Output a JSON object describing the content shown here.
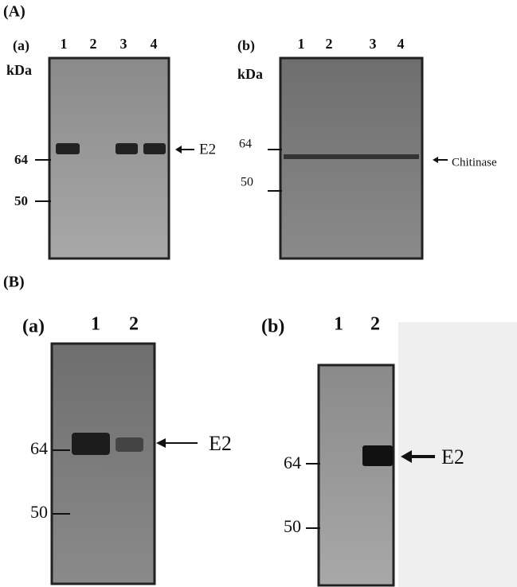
{
  "panels": [
    {
      "label": "(A)",
      "subpanels": [
        {
          "label": "(a)",
          "lanes": [
            "1",
            "2",
            "3",
            "4"
          ],
          "unit": "kDa",
          "markers": [
            64,
            50
          ],
          "band_label": "E2"
        },
        {
          "label": "(b)",
          "lanes": [
            "1",
            "2",
            "3",
            "4"
          ],
          "unit": "kDa",
          "markers": [
            64,
            50
          ],
          "band_label": "Chitinase"
        }
      ]
    },
    {
      "label": "(B)",
      "subpanels": [
        {
          "label": "(a)",
          "lanes": [
            "1",
            "2"
          ],
          "markers": [
            64,
            50
          ],
          "band_label": "E2"
        },
        {
          "label": "(b)",
          "lanes": [
            "1",
            "2"
          ],
          "markers": [
            64,
            50
          ],
          "band_label": "E2"
        }
      ]
    }
  ]
}
